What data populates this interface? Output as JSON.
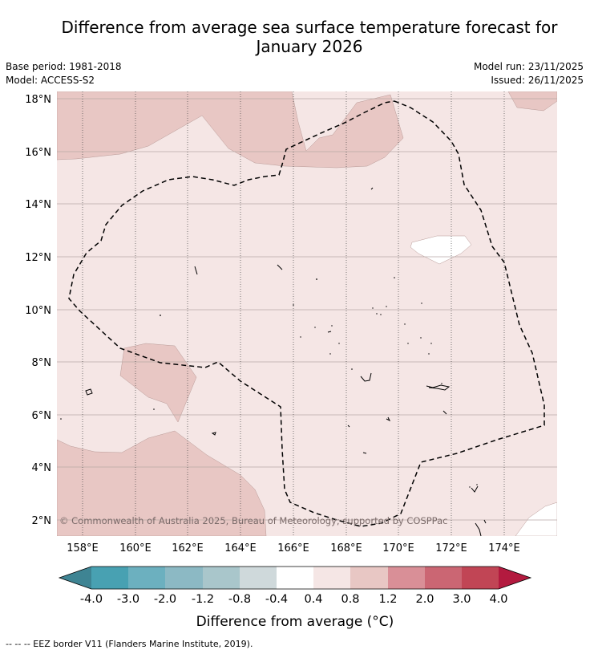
{
  "title_line1": "Difference from average sea surface temperature forecast for",
  "title_line2": "January 2026",
  "meta": {
    "base_period": "Base period: 1981-2018",
    "model": "Model: ACCESS-S2",
    "model_run": "Model run: 23/11/2025",
    "issued": "Issued: 26/11/2025"
  },
  "map": {
    "lat_labels": [
      "18°N",
      "16°N",
      "14°N",
      "12°N",
      "10°N",
      "8°N",
      "6°N",
      "4°N",
      "2°N"
    ],
    "lon_labels": [
      "158°E",
      "160°E",
      "162°E",
      "164°E",
      "166°E",
      "168°E",
      "170°E",
      "172°E",
      "174°E"
    ],
    "copyright": "© Commonwealth of Australia 2025, Bureau of Meteorology; supported by COSPPac",
    "colors": {
      "base_anomaly": "#f5e6e5",
      "warm_anomaly": "#e8c7c4",
      "neutral": "#ffffff",
      "eez_line": "#000000"
    }
  },
  "colorbar": {
    "tick_labels": [
      "-4.0",
      "-3.0",
      "-2.0",
      "-1.2",
      "-0.8",
      "-0.4",
      "0.4",
      "0.8",
      "1.2",
      "2.0",
      "3.0",
      "4.0"
    ],
    "colors": [
      "#3e8493",
      "#48a1b2",
      "#6cb0bf",
      "#8cb9c4",
      "#a9c6cb",
      "#cfd9db",
      "#ffffff",
      "#f5e6e5",
      "#e8c7c4",
      "#d98f97",
      "#cb6673",
      "#c14555",
      "#b31a3f"
    ],
    "label": "Difference from average (°C)"
  },
  "footer": "--  --  -- EEZ border V11 (Flanders Marine Institute, 2019)."
}
